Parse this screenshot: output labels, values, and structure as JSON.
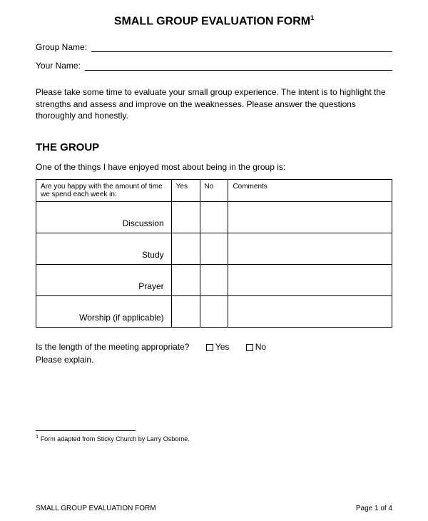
{
  "title": "SMALL GROUP EVALUATION FORM",
  "title_footnote_mark": "1",
  "fields": {
    "group_name_label": "Group Name:",
    "your_name_label": "Your Name:"
  },
  "instructions": "Please take some time to evaluate your small group experience. The intent is to highlight the strengths and assess and improve on the weaknesses. Please answer the questions thoroughly and honestly.",
  "section_heading": "THE GROUP",
  "prompt": "One of the things I have enjoyed most about being in the group is:",
  "table": {
    "header_question": "Are you happy with the amount of time we spend each week in:",
    "col_yes": "Yes",
    "col_no": "No",
    "col_comments": "Comments",
    "rows": [
      "Discussion",
      "Study",
      "Prayer",
      "Worship (if applicable)"
    ]
  },
  "length_question": "Is the length of the meeting appropriate?",
  "length_yes": "Yes",
  "length_no": "No",
  "please_explain": "Please explain.",
  "footnote": "Form adapted from Sticky Church by Larry Osborne.",
  "footnote_mark": "1",
  "footer_left": "SMALL GROUP EVALUATION FORM",
  "footer_right": "Page 1 of 4",
  "colors": {
    "text": "#000000",
    "background": "#ffffff",
    "border": "#000000"
  }
}
